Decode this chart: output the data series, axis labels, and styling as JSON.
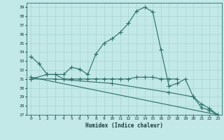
{
  "xlabel": "Humidex (Indice chaleur)",
  "bg_color": "#c2e8e8",
  "grid_color": "#b0d8d8",
  "line_color": "#2a6e68",
  "xlim": [
    -0.5,
    23.5
  ],
  "ylim": [
    27,
    39.5
  ],
  "yticks": [
    27,
    28,
    29,
    30,
    31,
    32,
    33,
    34,
    35,
    36,
    37,
    38,
    39
  ],
  "xticks": [
    0,
    1,
    2,
    3,
    4,
    5,
    6,
    7,
    8,
    9,
    10,
    11,
    12,
    13,
    14,
    15,
    16,
    17,
    18,
    19,
    20,
    21,
    22,
    23
  ],
  "series": [
    {
      "x": [
        0,
        1,
        2,
        3,
        4,
        5,
        6,
        7,
        8,
        9,
        10,
        11,
        12,
        13,
        14,
        15,
        16,
        17,
        18,
        19,
        20,
        21,
        22,
        23
      ],
      "y": [
        33.5,
        32.7,
        31.5,
        31.5,
        31.5,
        32.3,
        32.1,
        31.5,
        33.8,
        35.0,
        35.5,
        36.2,
        37.2,
        38.6,
        39.0,
        38.5,
        34.3,
        30.2,
        30.5,
        31.0,
        29.0,
        27.8,
        27.5,
        27.0
      ]
    },
    {
      "x": [
        0,
        2,
        3,
        4,
        5,
        6,
        7,
        8,
        9,
        10,
        11,
        12,
        13,
        14,
        15,
        16,
        17,
        18
      ],
      "y": [
        31.0,
        31.5,
        31.5,
        31.0,
        31.0,
        31.0,
        31.0,
        31.0,
        31.0,
        31.0,
        31.0,
        31.0,
        31.2,
        31.2,
        31.2,
        31.0,
        31.0,
        31.0
      ]
    },
    {
      "x": [
        0,
        23
      ],
      "y": [
        31.2,
        27.0
      ]
    },
    {
      "x": [
        0,
        3,
        10,
        17,
        20,
        21,
        22,
        23
      ],
      "y": [
        31.0,
        31.0,
        30.5,
        29.5,
        29.0,
        28.2,
        27.7,
        27.0
      ]
    }
  ]
}
